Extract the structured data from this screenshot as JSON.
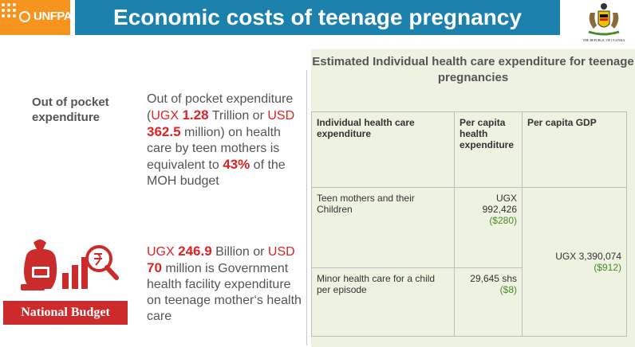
{
  "header": {
    "logo_text": "UNFPA",
    "title": "Economic costs of teenage pregnancy",
    "coat_caption": "THE REPUBLIC OF UGANDA"
  },
  "left": {
    "oop_label": "Out of pocket expenditure",
    "oop_text": {
      "p1": "Out of pocket expenditure  (",
      "ugx": "UGX",
      "ugx_value": "1.28",
      "p2": "Trillion or ",
      "usd": "USD",
      "usd_value": "362.5",
      "p3": "million) on health care by teen mothers is equivalent to ",
      "percent": "43%",
      "p4": " of the MOH budget"
    },
    "budget_text": {
      "ugx": "UGX ",
      "ugx_value": "246.9",
      "p1": " Billion or ",
      "usd": "USD ",
      "usd_value": "70",
      "p2": " million is Government health facility expenditure on teenage mother‘s health care"
    },
    "budget_label": "National Budget"
  },
  "right": {
    "title": "Estimated Individual health care expenditure for teenage pregnancies",
    "table": {
      "headers": [
        "Individual health care expenditure",
        "Per capita health expenditure",
        "Per capita GDP"
      ],
      "rows": [
        {
          "label": "Teen mothers and their Children",
          "value": "UGX 992,426",
          "usd": "($280)"
        },
        {
          "label": "Minor health care for a child per episode",
          "value": "29,645 shs",
          "usd": "($8)"
        }
      ],
      "gdp": {
        "value": "UGX 3,390,074",
        "usd": "($912)"
      }
    }
  }
}
